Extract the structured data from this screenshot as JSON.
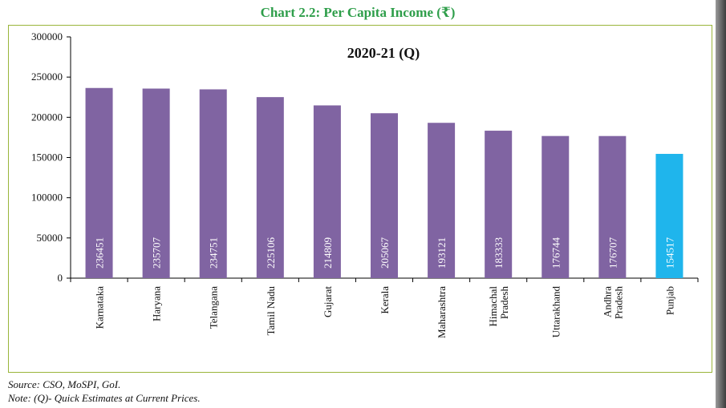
{
  "chart_data": {
    "type": "bar",
    "title": "Chart 2.2: Per Capita Income (₹)",
    "subtitle": "2020-21 (Q)",
    "categories": [
      "Karnataka",
      "Haryana",
      "Telangana",
      "Tamil Nadu",
      "Gujarat",
      "Kerala",
      "Maharashtra",
      "Himachal Pradesh",
      "Uttarakhand",
      "Andhra Pradesh",
      "Punjab"
    ],
    "values": [
      236451,
      235707,
      234751,
      225106,
      214809,
      205067,
      193121,
      183333,
      176744,
      176707,
      154517
    ],
    "value_labels": [
      "236451",
      "235707",
      "234751",
      "225106",
      "214809",
      "205067",
      "193121",
      "183333",
      "176744",
      "176707",
      "154517"
    ],
    "highlight_category": "Punjab",
    "xlabel": "",
    "ylabel": "",
    "ylim": [
      0,
      300000
    ],
    "yticks": [
      0,
      50000,
      100000,
      150000,
      200000,
      250000,
      300000
    ],
    "ytick_labels": [
      "0",
      "50000",
      "100000",
      "150000",
      "200000",
      "250000",
      "300000"
    ],
    "grid": false,
    "colors": {
      "bar": "#8064a2",
      "highlight": "#1fb5ec",
      "axis": "#000000",
      "frame": "#9ab53a",
      "title": "#2e9e4a"
    }
  },
  "footer": {
    "source": "Source: CSO, MoSPI, GoI.",
    "note": "Note: (Q)- Quick Estimates at Current Prices."
  }
}
